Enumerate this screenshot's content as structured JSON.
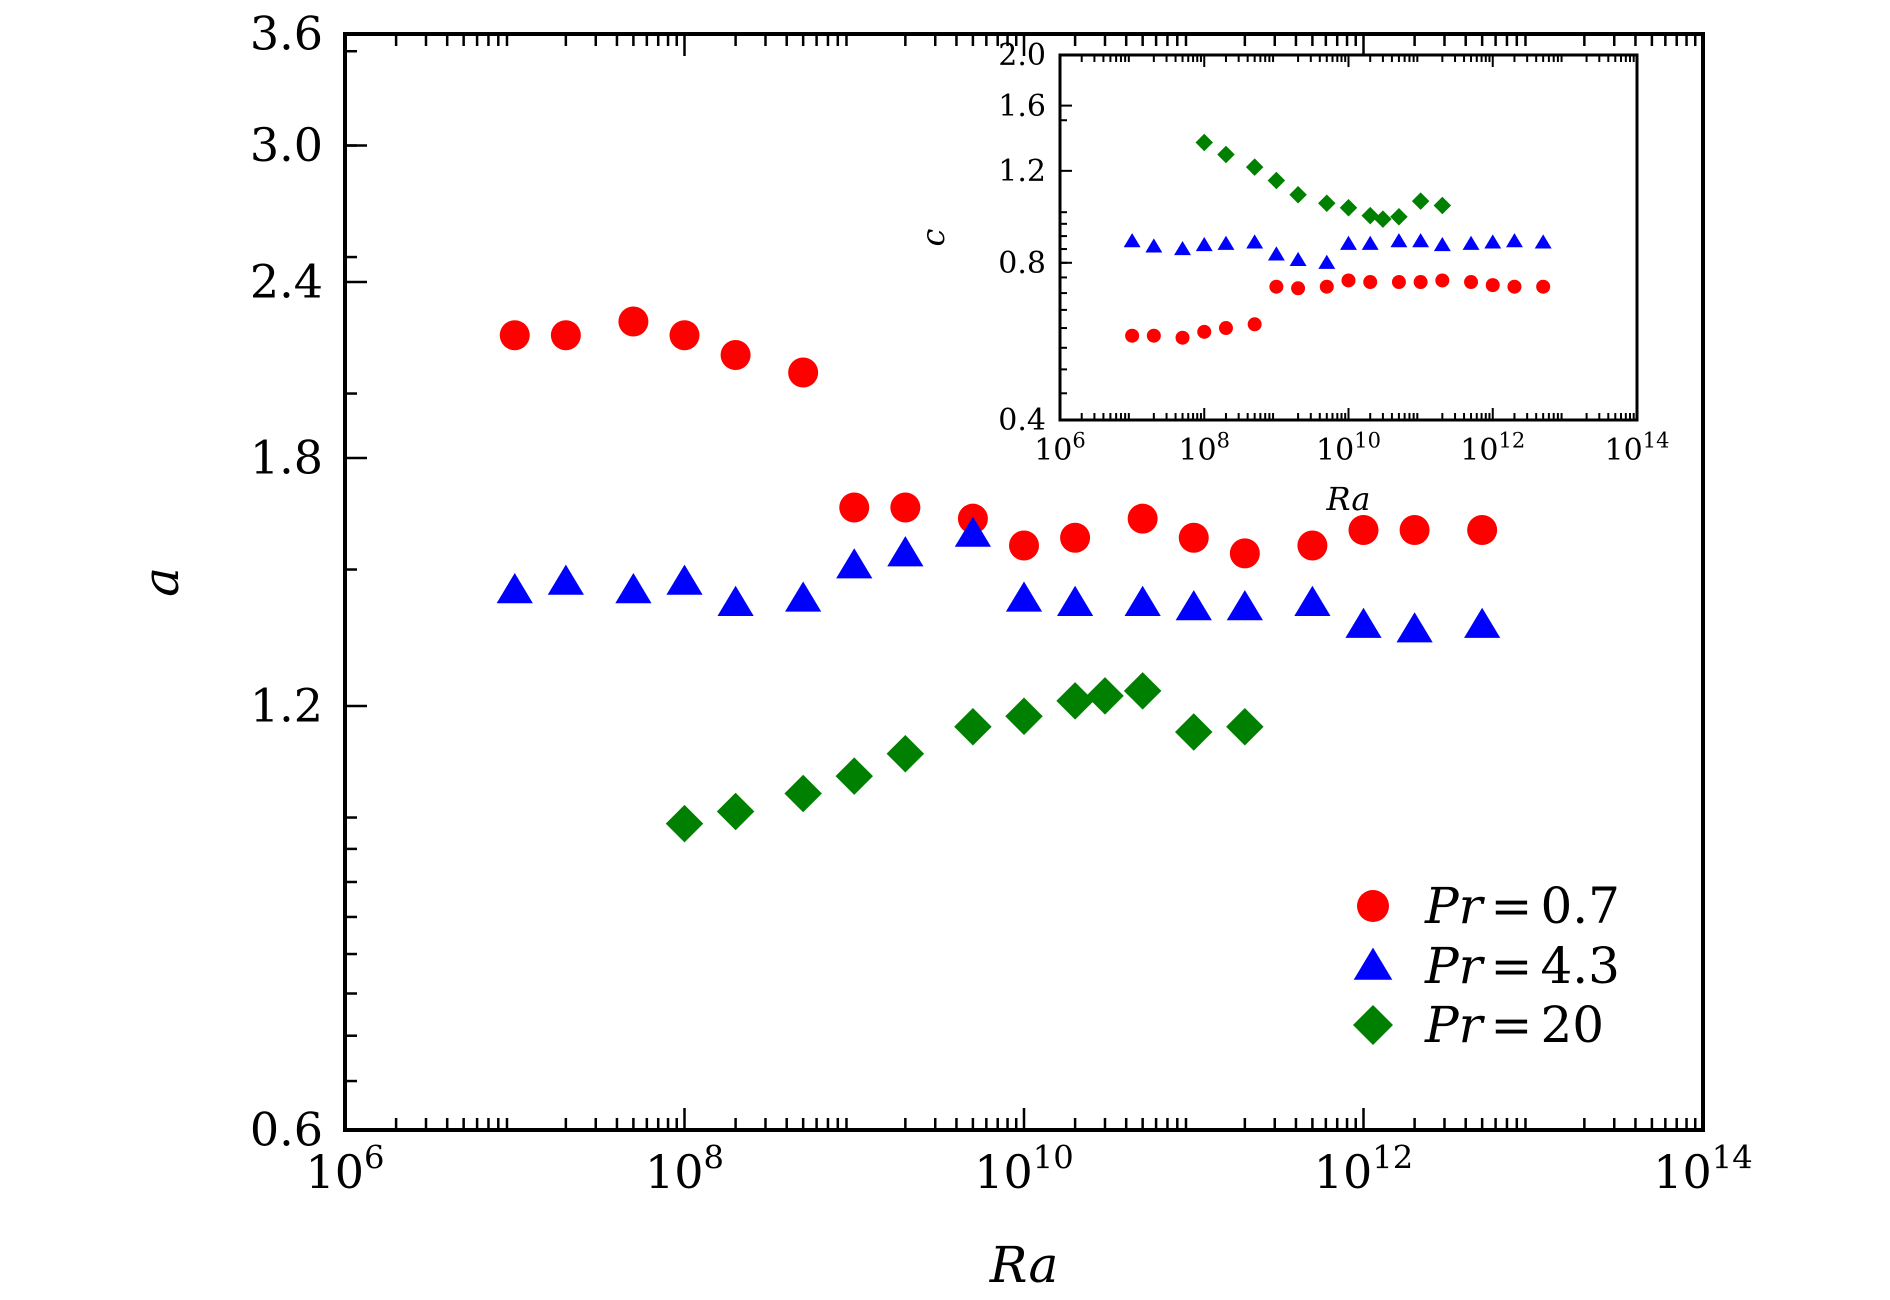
{
  "chart_data": [
    {
      "type": "scatter",
      "xlabel": "Ra",
      "ylabel": "a",
      "x_scale": "log",
      "y_scale": "log",
      "xlim": [
        1000000,
        100000000000000
      ],
      "ylim": [
        0.6,
        3.6
      ],
      "x_ticks": [
        1000000,
        100000000,
        10000000000,
        1000000000000,
        100000000000000
      ],
      "x_tick_labels": [
        {
          "base": "10",
          "exp": "6"
        },
        {
          "base": "10",
          "exp": "8"
        },
        {
          "base": "10",
          "exp": "10"
        },
        {
          "base": "10",
          "exp": "12"
        },
        {
          "base": "10",
          "exp": "14"
        }
      ],
      "y_ticks": [
        0.6,
        1.2,
        1.8,
        2.4,
        3.0,
        3.6
      ],
      "y_tick_labels": [
        "0.6",
        "1.2",
        "1.8",
        "2.4",
        "3.0",
        "3.6"
      ],
      "legend": {
        "placement": "lower-right",
        "entries": [
          {
            "prefix": "Pr",
            "value": "0.7"
          },
          {
            "prefix": "Pr",
            "value": "4.3"
          },
          {
            "prefix": "Pr",
            "value": "20"
          }
        ]
      },
      "series": [
        {
          "name": "Pr = 0.7",
          "marker": "circle",
          "color": "#ff0000",
          "x": [
            10000000,
            20000000,
            50000000,
            100000000,
            200000000,
            500000000,
            1000000000,
            2000000000,
            5000000000,
            10000000000,
            20000000000,
            50000000000,
            100000000000,
            200000000000,
            500000000000,
            1000000000000,
            2000000000000,
            5000000000000
          ],
          "y": [
            2.2,
            2.2,
            2.25,
            2.2,
            2.13,
            2.07,
            1.66,
            1.66,
            1.63,
            1.56,
            1.58,
            1.63,
            1.58,
            1.54,
            1.56,
            1.6,
            1.6,
            1.6
          ]
        },
        {
          "name": "Pr = 4.3",
          "marker": "triangle",
          "color": "#0000ff",
          "x": [
            10000000,
            20000000,
            50000000,
            100000000,
            200000000,
            500000000,
            1000000000,
            2000000000,
            5000000000,
            10000000000,
            20000000000,
            50000000000,
            100000000000,
            200000000000,
            500000000000,
            1000000000000,
            2000000000000,
            5000000000000
          ],
          "y": [
            1.45,
            1.47,
            1.45,
            1.47,
            1.42,
            1.43,
            1.51,
            1.54,
            1.59,
            1.43,
            1.42,
            1.42,
            1.41,
            1.41,
            1.42,
            1.37,
            1.36,
            1.37
          ]
        },
        {
          "name": "Pr = 20",
          "marker": "diamond",
          "color": "#008000",
          "x": [
            100000000,
            200000000,
            500000000,
            1000000000,
            2000000000,
            5000000000,
            10000000000,
            20000000000,
            30000000000,
            50000000000,
            100000000000,
            200000000000
          ],
          "y": [
            0.99,
            1.01,
            1.04,
            1.07,
            1.11,
            1.16,
            1.18,
            1.21,
            1.22,
            1.23,
            1.15,
            1.16
          ]
        }
      ]
    },
    {
      "type": "scatter",
      "xlabel": "Ra",
      "ylabel": "c",
      "x_scale": "log",
      "y_scale": "log",
      "xlim": [
        1000000,
        100000000000000
      ],
      "ylim": [
        0.4,
        2.0
      ],
      "x_ticks": [
        1000000,
        100000000,
        10000000000,
        1000000000000,
        100000000000000
      ],
      "x_tick_labels": [
        {
          "base": "10",
          "exp": "6"
        },
        {
          "base": "10",
          "exp": "8"
        },
        {
          "base": "10",
          "exp": "10"
        },
        {
          "base": "10",
          "exp": "12"
        },
        {
          "base": "10",
          "exp": "14"
        }
      ],
      "y_ticks": [
        0.4,
        0.8,
        1.2,
        1.6,
        2.0
      ],
      "y_tick_labels": [
        "0.4",
        "0.8",
        "1.2",
        "1.6",
        "2.0"
      ],
      "series": [
        {
          "name": "Pr = 0.7",
          "marker": "circle",
          "color": "#ff0000",
          "x": [
            10000000,
            20000000,
            50000000,
            100000000,
            200000000,
            500000000,
            1000000000,
            2000000000,
            5000000000,
            10000000000,
            20000000000,
            50000000000,
            100000000000,
            200000000000,
            500000000000,
            1000000000000,
            2000000000000,
            5000000000000
          ],
          "y": [
            0.58,
            0.58,
            0.575,
            0.59,
            0.6,
            0.61,
            0.72,
            0.715,
            0.72,
            0.74,
            0.735,
            0.735,
            0.735,
            0.74,
            0.735,
            0.725,
            0.72,
            0.72
          ]
        },
        {
          "name": "Pr = 4.3",
          "marker": "triangle",
          "color": "#0000ff",
          "x": [
            10000000,
            20000000,
            50000000,
            100000000,
            200000000,
            500000000,
            1000000000,
            2000000000,
            5000000000,
            10000000000,
            20000000000,
            50000000000,
            100000000000,
            200000000000,
            500000000000,
            1000000000000,
            2000000000000,
            5000000000000
          ],
          "y": [
            0.88,
            0.86,
            0.85,
            0.865,
            0.87,
            0.875,
            0.83,
            0.81,
            0.8,
            0.87,
            0.87,
            0.88,
            0.88,
            0.865,
            0.87,
            0.875,
            0.88,
            0.875
          ]
        },
        {
          "name": "Pr = 20",
          "marker": "diamond",
          "color": "#008000",
          "x": [
            100000000,
            200000000,
            500000000,
            1000000000,
            2000000000,
            5000000000,
            10000000000,
            20000000000,
            30000000000,
            50000000000,
            100000000000,
            200000000000
          ],
          "y": [
            1.36,
            1.29,
            1.22,
            1.15,
            1.08,
            1.04,
            1.02,
            0.985,
            0.97,
            0.98,
            1.05,
            1.03
          ]
        }
      ]
    }
  ]
}
